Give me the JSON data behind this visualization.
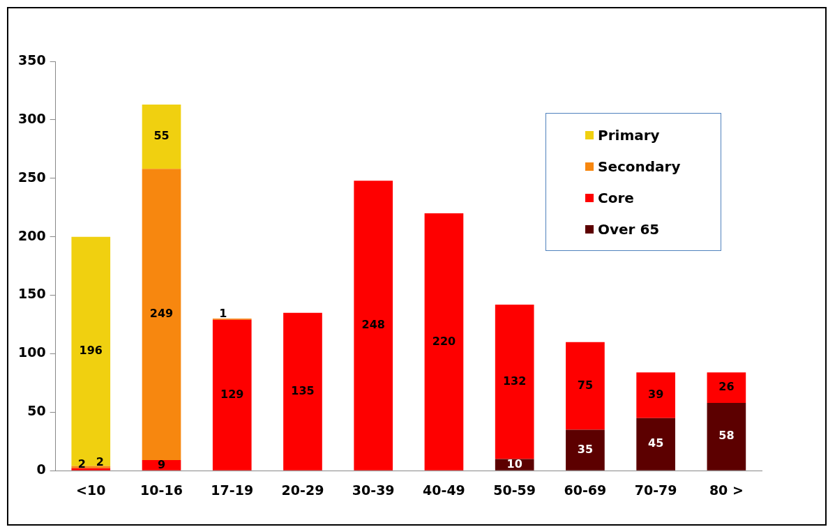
{
  "chart_data": {
    "type": "bar",
    "stacked": true,
    "categories": [
      "<10",
      "10-16",
      "17-19",
      "20-29",
      "30-39",
      "40-49",
      "50-59",
      "60-69",
      "70-79",
      "80 >"
    ],
    "series": [
      {
        "name": "Over 65",
        "color": "#5c0000",
        "values": [
          null,
          null,
          null,
          null,
          null,
          null,
          10,
          35,
          45,
          58
        ]
      },
      {
        "name": "Core",
        "color": "#fe0000",
        "values": [
          2,
          9,
          129,
          135,
          248,
          220,
          132,
          75,
          39,
          26
        ]
      },
      {
        "name": "Secondary",
        "color": "#f7870f",
        "values": [
          2,
          249,
          1,
          null,
          null,
          null,
          null,
          null,
          null,
          null
        ]
      },
      {
        "name": "Primary",
        "color": "#f0d010",
        "values": [
          196,
          55,
          null,
          null,
          null,
          null,
          null,
          null,
          null,
          null
        ]
      }
    ],
    "ylim": [
      0,
      350
    ],
    "yticks": [
      0,
      50,
      100,
      150,
      200,
      250,
      300,
      350
    ],
    "grid": false,
    "legend": "top right",
    "data_labels": true
  }
}
